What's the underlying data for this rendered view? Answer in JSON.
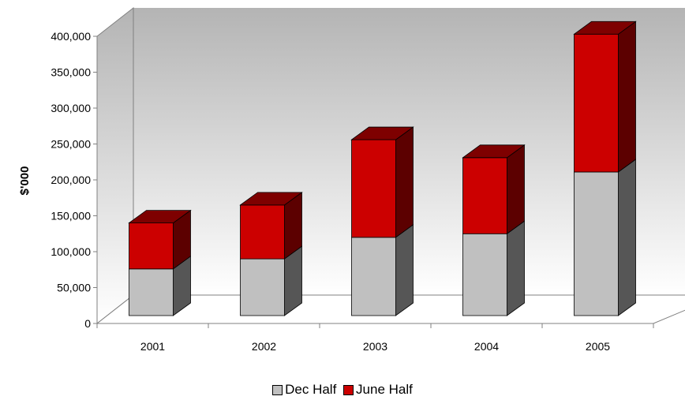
{
  "chart_data": {
    "type": "bar",
    "stacked": true,
    "three_d": true,
    "ylabel": "$'000",
    "ylim": [
      0,
      400000
    ],
    "y_ticks": [
      "0",
      "50,000",
      "100,000",
      "150,000",
      "200,000",
      "250,000",
      "300,000",
      "350,000",
      "400,000"
    ],
    "categories": [
      "2001",
      "2002",
      "2003",
      "2004",
      "2005"
    ],
    "series": [
      {
        "name": "Dec Half",
        "color": "#c0c0c0",
        "values": [
          65000,
          79000,
          109000,
          114000,
          200000
        ]
      },
      {
        "name": "June Half",
        "color": "#cc0000",
        "values": [
          64000,
          75000,
          136000,
          106000,
          192000
        ]
      }
    ],
    "legend_position": "bottom"
  }
}
